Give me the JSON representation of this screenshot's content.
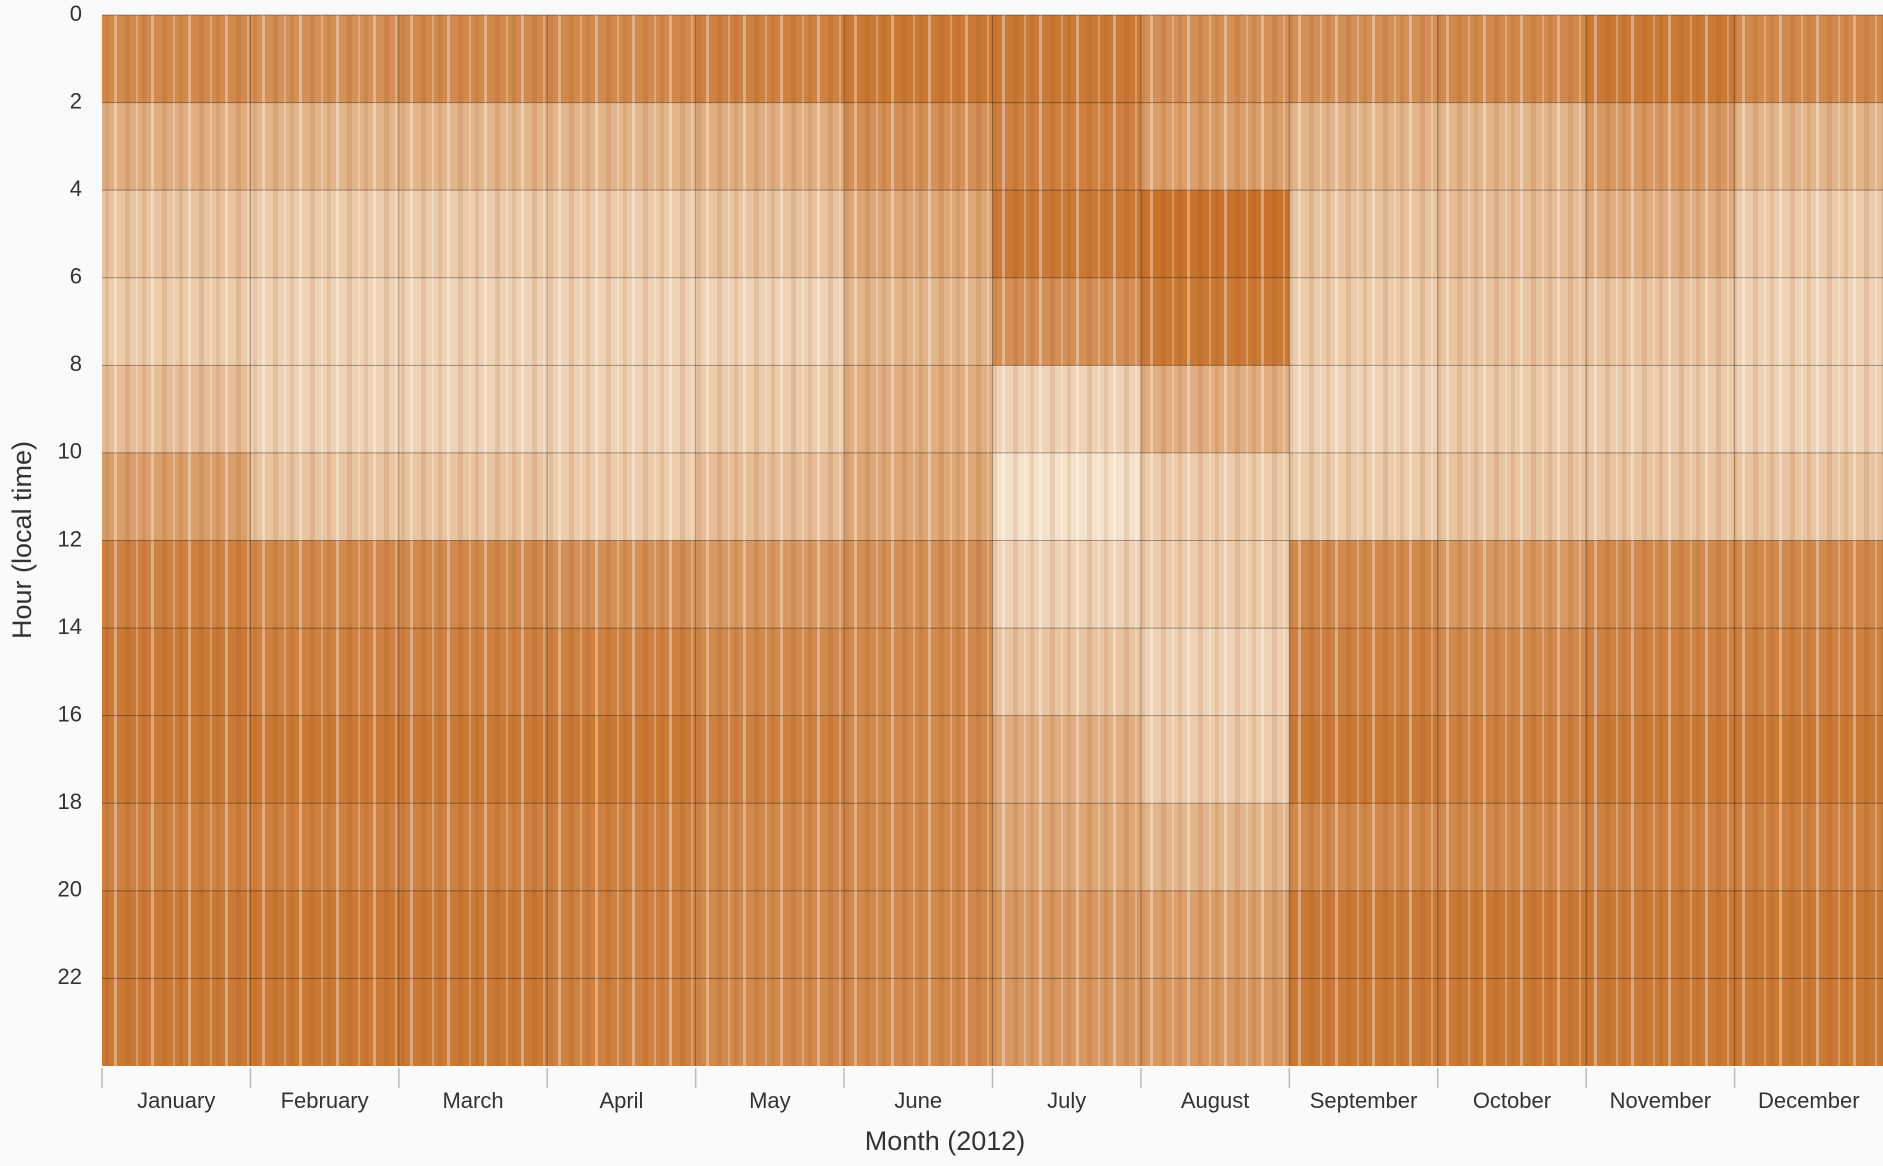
{
  "chart_data": {
    "type": "heatmap",
    "xlabel": "Month (2012)",
    "ylabel": "Hour (local time)",
    "categories": [
      "January",
      "February",
      "March",
      "April",
      "May",
      "June",
      "July",
      "August",
      "September",
      "October",
      "November",
      "December"
    ],
    "y_bins": [
      0,
      2,
      4,
      6,
      8,
      10,
      12,
      14,
      16,
      18,
      20,
      22,
      24
    ],
    "ylim": [
      0,
      24
    ],
    "y_inverted": true,
    "yticks": [
      0,
      2,
      4,
      6,
      8,
      10,
      12,
      14,
      16,
      18,
      20,
      22
    ],
    "grid": true,
    "colorscale": [
      "#bf5c0c",
      "#fbf1e0"
    ],
    "zlim": [
      0,
      1
    ],
    "z": [
      [
        0.3,
        0.35,
        0.3,
        0.3,
        0.25,
        0.2,
        0.2,
        0.35,
        0.35,
        0.3,
        0.2,
        0.3
      ],
      [
        0.55,
        0.6,
        0.6,
        0.6,
        0.55,
        0.35,
        0.25,
        0.45,
        0.6,
        0.6,
        0.4,
        0.6
      ],
      [
        0.7,
        0.75,
        0.75,
        0.75,
        0.7,
        0.5,
        0.2,
        0.15,
        0.7,
        0.65,
        0.55,
        0.75
      ],
      [
        0.75,
        0.8,
        0.8,
        0.8,
        0.8,
        0.6,
        0.35,
        0.2,
        0.75,
        0.7,
        0.7,
        0.8
      ],
      [
        0.65,
        0.8,
        0.8,
        0.8,
        0.75,
        0.55,
        0.8,
        0.55,
        0.8,
        0.75,
        0.75,
        0.8
      ],
      [
        0.45,
        0.7,
        0.7,
        0.75,
        0.65,
        0.5,
        0.9,
        0.75,
        0.75,
        0.7,
        0.7,
        0.7
      ],
      [
        0.25,
        0.3,
        0.3,
        0.35,
        0.4,
        0.35,
        0.8,
        0.75,
        0.3,
        0.4,
        0.3,
        0.3
      ],
      [
        0.2,
        0.25,
        0.25,
        0.25,
        0.3,
        0.3,
        0.7,
        0.8,
        0.25,
        0.3,
        0.25,
        0.25
      ],
      [
        0.2,
        0.2,
        0.2,
        0.2,
        0.25,
        0.3,
        0.55,
        0.75,
        0.2,
        0.25,
        0.2,
        0.2
      ],
      [
        0.25,
        0.25,
        0.25,
        0.25,
        0.3,
        0.3,
        0.5,
        0.6,
        0.3,
        0.3,
        0.25,
        0.25
      ],
      [
        0.2,
        0.2,
        0.2,
        0.25,
        0.3,
        0.3,
        0.4,
        0.45,
        0.2,
        0.2,
        0.2,
        0.2
      ],
      [
        0.2,
        0.2,
        0.2,
        0.25,
        0.3,
        0.3,
        0.4,
        0.4,
        0.2,
        0.2,
        0.2,
        0.2
      ]
    ]
  }
}
